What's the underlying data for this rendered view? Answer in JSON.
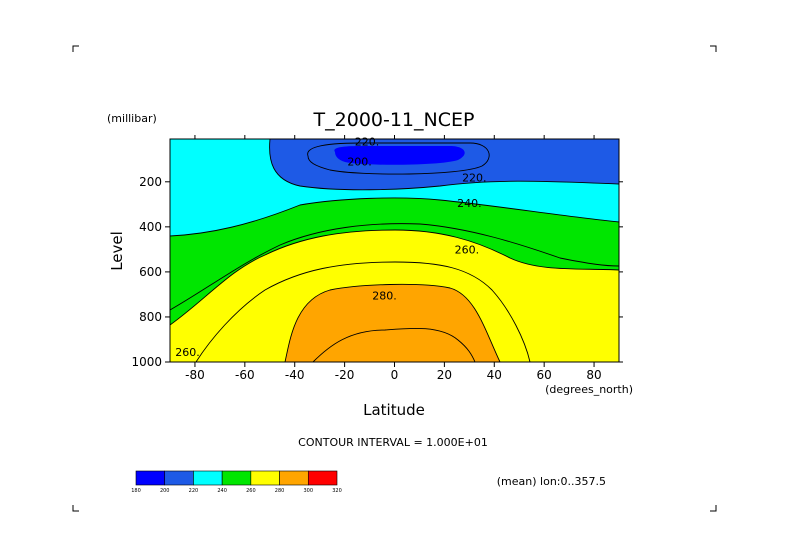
{
  "chart_data": {
    "type": "filled-contour",
    "title": "T_2000-11_NCEP",
    "xlabel": "Latitude",
    "x_unit": "(degrees_north)",
    "ylabel": "Level",
    "y_unit": "(millibar)",
    "x_ticks": [
      -80,
      -60,
      -40,
      -20,
      0,
      20,
      40,
      60,
      80
    ],
    "y_ticks": [
      200,
      400,
      600,
      800,
      1000
    ],
    "xlim": [
      -90,
      90
    ],
    "ylim": [
      1000,
      10
    ],
    "contour_interval_text": "CONTOUR INTERVAL = 1.000E+01",
    "contour_labels": [
      {
        "text": "220.",
        "lat": -11,
        "lev": 20
      },
      {
        "text": "200.",
        "lat": -14,
        "lev": 110
      },
      {
        "text": "220.",
        "lat": 32,
        "lev": 180
      },
      {
        "text": "240.",
        "lat": 30,
        "lev": 295
      },
      {
        "text": "260.",
        "lat": 29,
        "lev": 500
      },
      {
        "text": "280.",
        "lat": -4,
        "lev": 705
      },
      {
        "text": "260.",
        "lat": -83,
        "lev": 955
      }
    ],
    "colorbar": {
      "levels": [
        "180",
        "200",
        "220",
        "240",
        "260",
        "280",
        "300",
        "320"
      ],
      "colors": [
        "#0000ff",
        "#1e5ae6",
        "#00ffff",
        "#00e600",
        "#ffff00",
        "#ffa500",
        "#ff0000"
      ]
    },
    "footnote": "(mean) lon:0..357.5"
  }
}
